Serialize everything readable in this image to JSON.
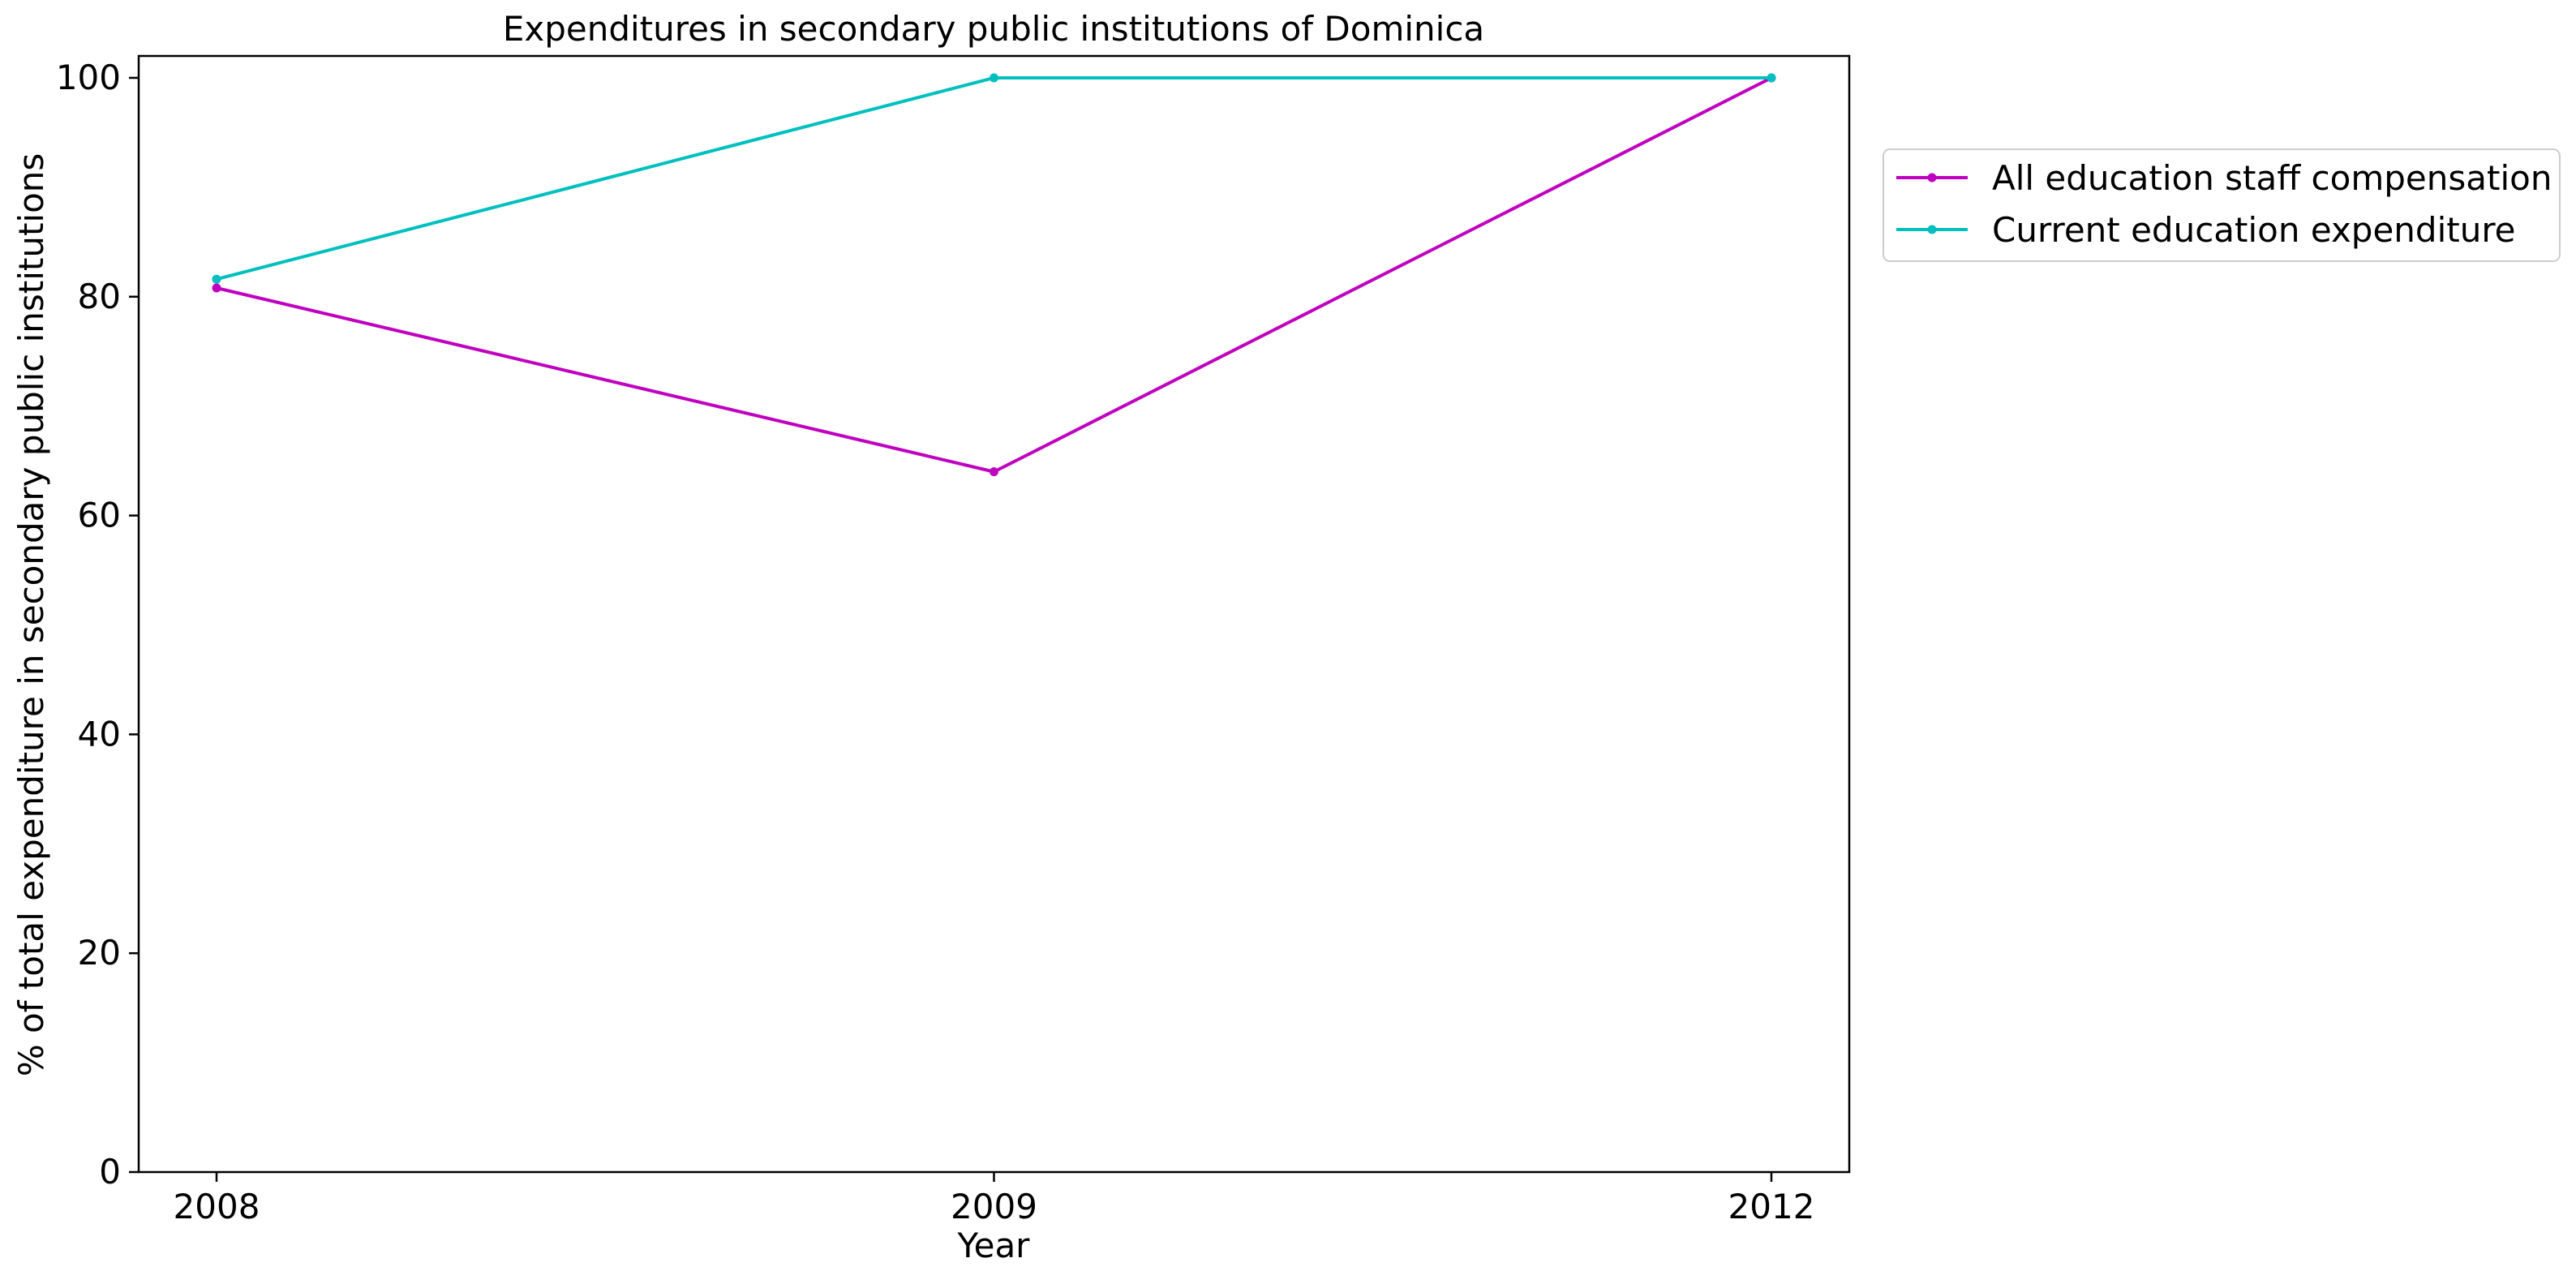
{
  "chart_data": {
    "type": "line",
    "title": "Expenditures in secondary public institutions of Dominica",
    "xlabel": "Year",
    "ylabel": "% of total expenditure in secondary public institutions",
    "x": [
      "2008",
      "2009",
      "2012"
    ],
    "ylim": [
      0,
      102
    ],
    "yticks": [
      0,
      20,
      40,
      60,
      80,
      100
    ],
    "grid": false,
    "legend_position": "outside-right-top",
    "series": [
      {
        "name": "All education staff compensation",
        "color": "#bf00bf",
        "values": [
          80.8,
          64.0,
          100.0
        ]
      },
      {
        "name": "Current education expenditure",
        "color": "#00bfbf",
        "values": [
          81.6,
          100.0,
          100.0
        ]
      }
    ]
  }
}
